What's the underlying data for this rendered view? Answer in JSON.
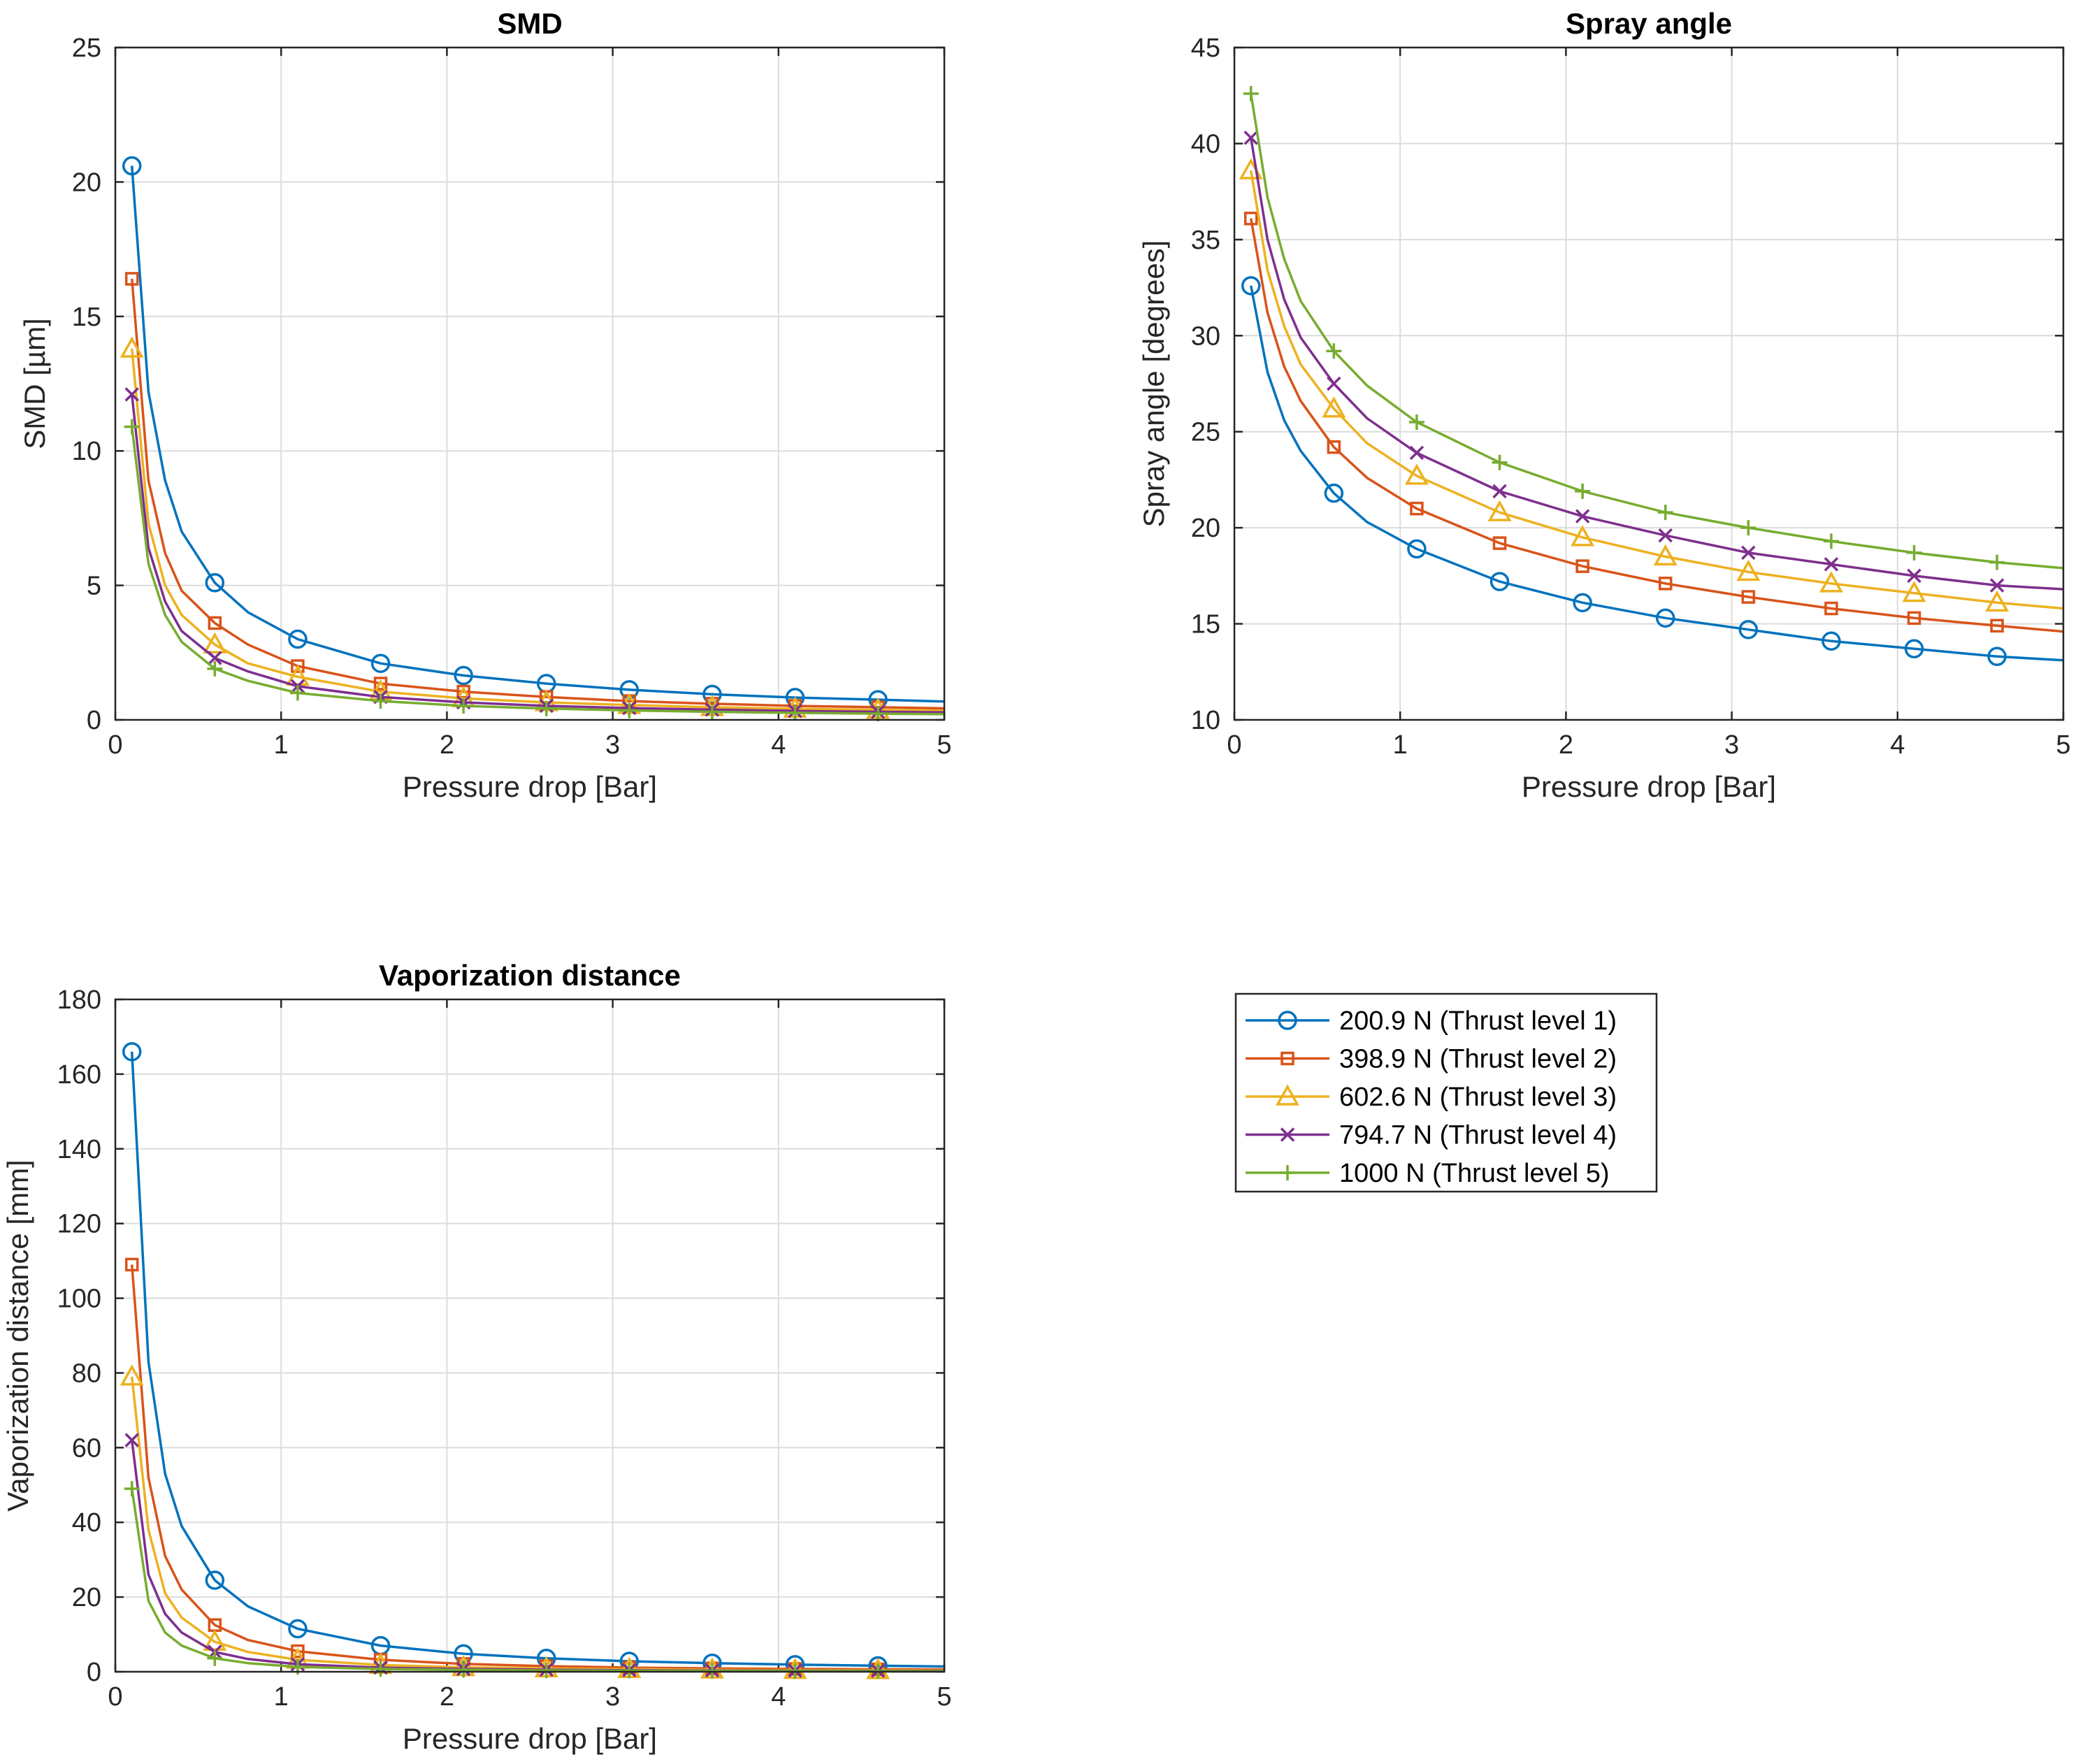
{
  "legend": {
    "entries": [
      {
        "label": "200.9 N (Thrust level 1)",
        "color": "#0072BD",
        "marker": "circle"
      },
      {
        "label": "398.9 N (Thrust level 2)",
        "color": "#D95319",
        "marker": "square"
      },
      {
        "label": "602.6 N (Thrust level 3)",
        "color": "#EDB120",
        "marker": "triangle"
      },
      {
        "label": "794.7 N (Thrust level 4)",
        "color": "#7E2F8E",
        "marker": "x"
      },
      {
        "label": "1000 N (Thrust level 5)",
        "color": "#77AC30",
        "marker": "plus"
      }
    ]
  },
  "chart_data": [
    {
      "id": "smd",
      "type": "line",
      "title": "SMD",
      "xlabel": "Pressure drop [Bar]",
      "ylabel": "SMD [µm]",
      "xlim": [
        0,
        5
      ],
      "ylim": [
        0,
        25
      ],
      "xticks": [
        "0",
        "1",
        "2",
        "3",
        "4",
        "5"
      ],
      "yticks": [
        "0",
        "5",
        "10",
        "15",
        "20",
        "25"
      ],
      "grid": true,
      "x": [
        0.1,
        0.2,
        0.3,
        0.4,
        0.6,
        0.8,
        1.1,
        1.6,
        2.1,
        2.6,
        3.1,
        3.6,
        4.1,
        4.6,
        5.0
      ],
      "marker_x": [
        0.1,
        0.6,
        1.1,
        1.6,
        2.1,
        2.6,
        3.1,
        3.6,
        4.1,
        4.6
      ],
      "series": [
        {
          "name": "200.9 N (Thrust level 1)",
          "values": [
            20.6,
            12.2,
            8.9,
            7.0,
            5.1,
            4.0,
            3.0,
            2.1,
            1.65,
            1.35,
            1.12,
            0.95,
            0.83,
            0.75,
            0.68
          ]
        },
        {
          "name": "398.9 N (Thrust level 2)",
          "values": [
            16.4,
            8.9,
            6.2,
            4.8,
            3.6,
            2.8,
            2.0,
            1.35,
            1.05,
            0.85,
            0.7,
            0.6,
            0.52,
            0.47,
            0.43
          ]
        },
        {
          "name": "602.6 N (Thrust level 3)",
          "values": [
            13.8,
            7.3,
            5.0,
            3.9,
            2.8,
            2.1,
            1.6,
            1.05,
            0.8,
            0.65,
            0.55,
            0.47,
            0.41,
            0.37,
            0.34
          ]
        },
        {
          "name": "794.7 N (Thrust level 4)",
          "values": [
            12.1,
            6.4,
            4.4,
            3.3,
            2.3,
            1.8,
            1.25,
            0.85,
            0.65,
            0.52,
            0.44,
            0.38,
            0.33,
            0.3,
            0.28
          ]
        },
        {
          "name": "1000 N (Thrust level 5)",
          "values": [
            10.9,
            5.8,
            3.9,
            2.9,
            1.9,
            1.45,
            1.0,
            0.7,
            0.52,
            0.42,
            0.35,
            0.3,
            0.26,
            0.23,
            0.21
          ]
        }
      ]
    },
    {
      "id": "spray",
      "type": "line",
      "title": "Spray angle",
      "xlabel": "Pressure drop [Bar]",
      "ylabel": "Spray angle [degrees]",
      "xlim": [
        0,
        5
      ],
      "ylim": [
        10,
        45
      ],
      "xticks": [
        "0",
        "1",
        "2",
        "3",
        "4",
        "5"
      ],
      "yticks": [
        "10",
        "15",
        "20",
        "25",
        "30",
        "35",
        "40",
        "45"
      ],
      "grid": true,
      "x": [
        0.1,
        0.2,
        0.3,
        0.4,
        0.6,
        0.8,
        1.1,
        1.6,
        2.1,
        2.6,
        3.1,
        3.6,
        4.1,
        4.6,
        5.0
      ],
      "marker_x": [
        0.1,
        0.6,
        1.1,
        1.6,
        2.1,
        2.6,
        3.1,
        3.6,
        4.1,
        4.6
      ],
      "series": [
        {
          "name": "200.9 N (Thrust level 1)",
          "values": [
            32.6,
            28.1,
            25.6,
            24.0,
            21.8,
            20.3,
            18.9,
            17.2,
            16.1,
            15.3,
            14.7,
            14.1,
            13.7,
            13.3,
            13.1
          ]
        },
        {
          "name": "398.9 N (Thrust level 2)",
          "values": [
            36.1,
            31.2,
            28.4,
            26.6,
            24.2,
            22.6,
            21.0,
            19.2,
            18.0,
            17.1,
            16.4,
            15.8,
            15.3,
            14.9,
            14.6
          ]
        },
        {
          "name": "602.6 N (Thrust level 3)",
          "values": [
            38.6,
            33.4,
            30.5,
            28.5,
            26.2,
            24.4,
            22.7,
            20.8,
            19.5,
            18.5,
            17.7,
            17.1,
            16.6,
            16.1,
            15.8
          ]
        },
        {
          "name": "794.7 N (Thrust level 4)",
          "values": [
            40.3,
            35.0,
            31.9,
            29.9,
            27.5,
            25.7,
            23.9,
            21.9,
            20.6,
            19.6,
            18.7,
            18.1,
            17.5,
            17.0,
            16.8
          ]
        },
        {
          "name": "1000 N (Thrust level 5)",
          "values": [
            42.6,
            37.2,
            34.0,
            31.8,
            29.2,
            27.4,
            25.5,
            23.4,
            21.9,
            20.8,
            20.0,
            19.3,
            18.7,
            18.2,
            17.9
          ]
        }
      ]
    },
    {
      "id": "vap",
      "type": "line",
      "title": "Vaporization distance",
      "xlabel": "Pressure drop [Bar]",
      "ylabel": "Vaporization distance [mm]",
      "xlim": [
        0,
        5
      ],
      "ylim": [
        0,
        180
      ],
      "xticks": [
        "0",
        "1",
        "2",
        "3",
        "4",
        "5"
      ],
      "yticks": [
        "0",
        "20",
        "40",
        "60",
        "80",
        "100",
        "120",
        "140",
        "160",
        "180"
      ],
      "grid": true,
      "x": [
        0.1,
        0.2,
        0.3,
        0.4,
        0.6,
        0.8,
        1.1,
        1.6,
        2.1,
        2.6,
        3.1,
        3.6,
        4.1,
        4.6,
        5.0
      ],
      "marker_x": [
        0.1,
        0.6,
        1.1,
        1.6,
        2.1,
        2.6,
        3.1,
        3.6,
        4.1,
        4.6
      ],
      "series": [
        {
          "name": "200.9 N (Thrust level 1)",
          "values": [
            166,
            83,
            53,
            39,
            24.5,
            17.5,
            11.5,
            7.0,
            4.8,
            3.6,
            2.8,
            2.3,
            1.9,
            1.6,
            1.4
          ]
        },
        {
          "name": "398.9 N (Thrust level 2)",
          "values": [
            109,
            52,
            31,
            22,
            12.5,
            8.5,
            5.5,
            3.2,
            2.1,
            1.5,
            1.1,
            0.9,
            0.75,
            0.65,
            0.6
          ]
        },
        {
          "name": "602.6 N (Thrust level 3)",
          "values": [
            79,
            38,
            21,
            14.5,
            8.0,
            5.3,
            3.2,
            1.8,
            1.2,
            0.9,
            0.7,
            0.55,
            0.45,
            0.4,
            0.35
          ]
        },
        {
          "name": "794.7 N (Thrust level 4)",
          "values": [
            62,
            26,
            15.5,
            10.5,
            5.3,
            3.4,
            2.0,
            1.1,
            0.75,
            0.55,
            0.42,
            0.34,
            0.29,
            0.25,
            0.22
          ]
        },
        {
          "name": "1000 N (Thrust level 5)",
          "values": [
            49,
            19,
            10.5,
            7.0,
            3.6,
            2.3,
            1.3,
            0.75,
            0.5,
            0.36,
            0.28,
            0.23,
            0.19,
            0.16,
            0.15
          ]
        }
      ]
    }
  ]
}
